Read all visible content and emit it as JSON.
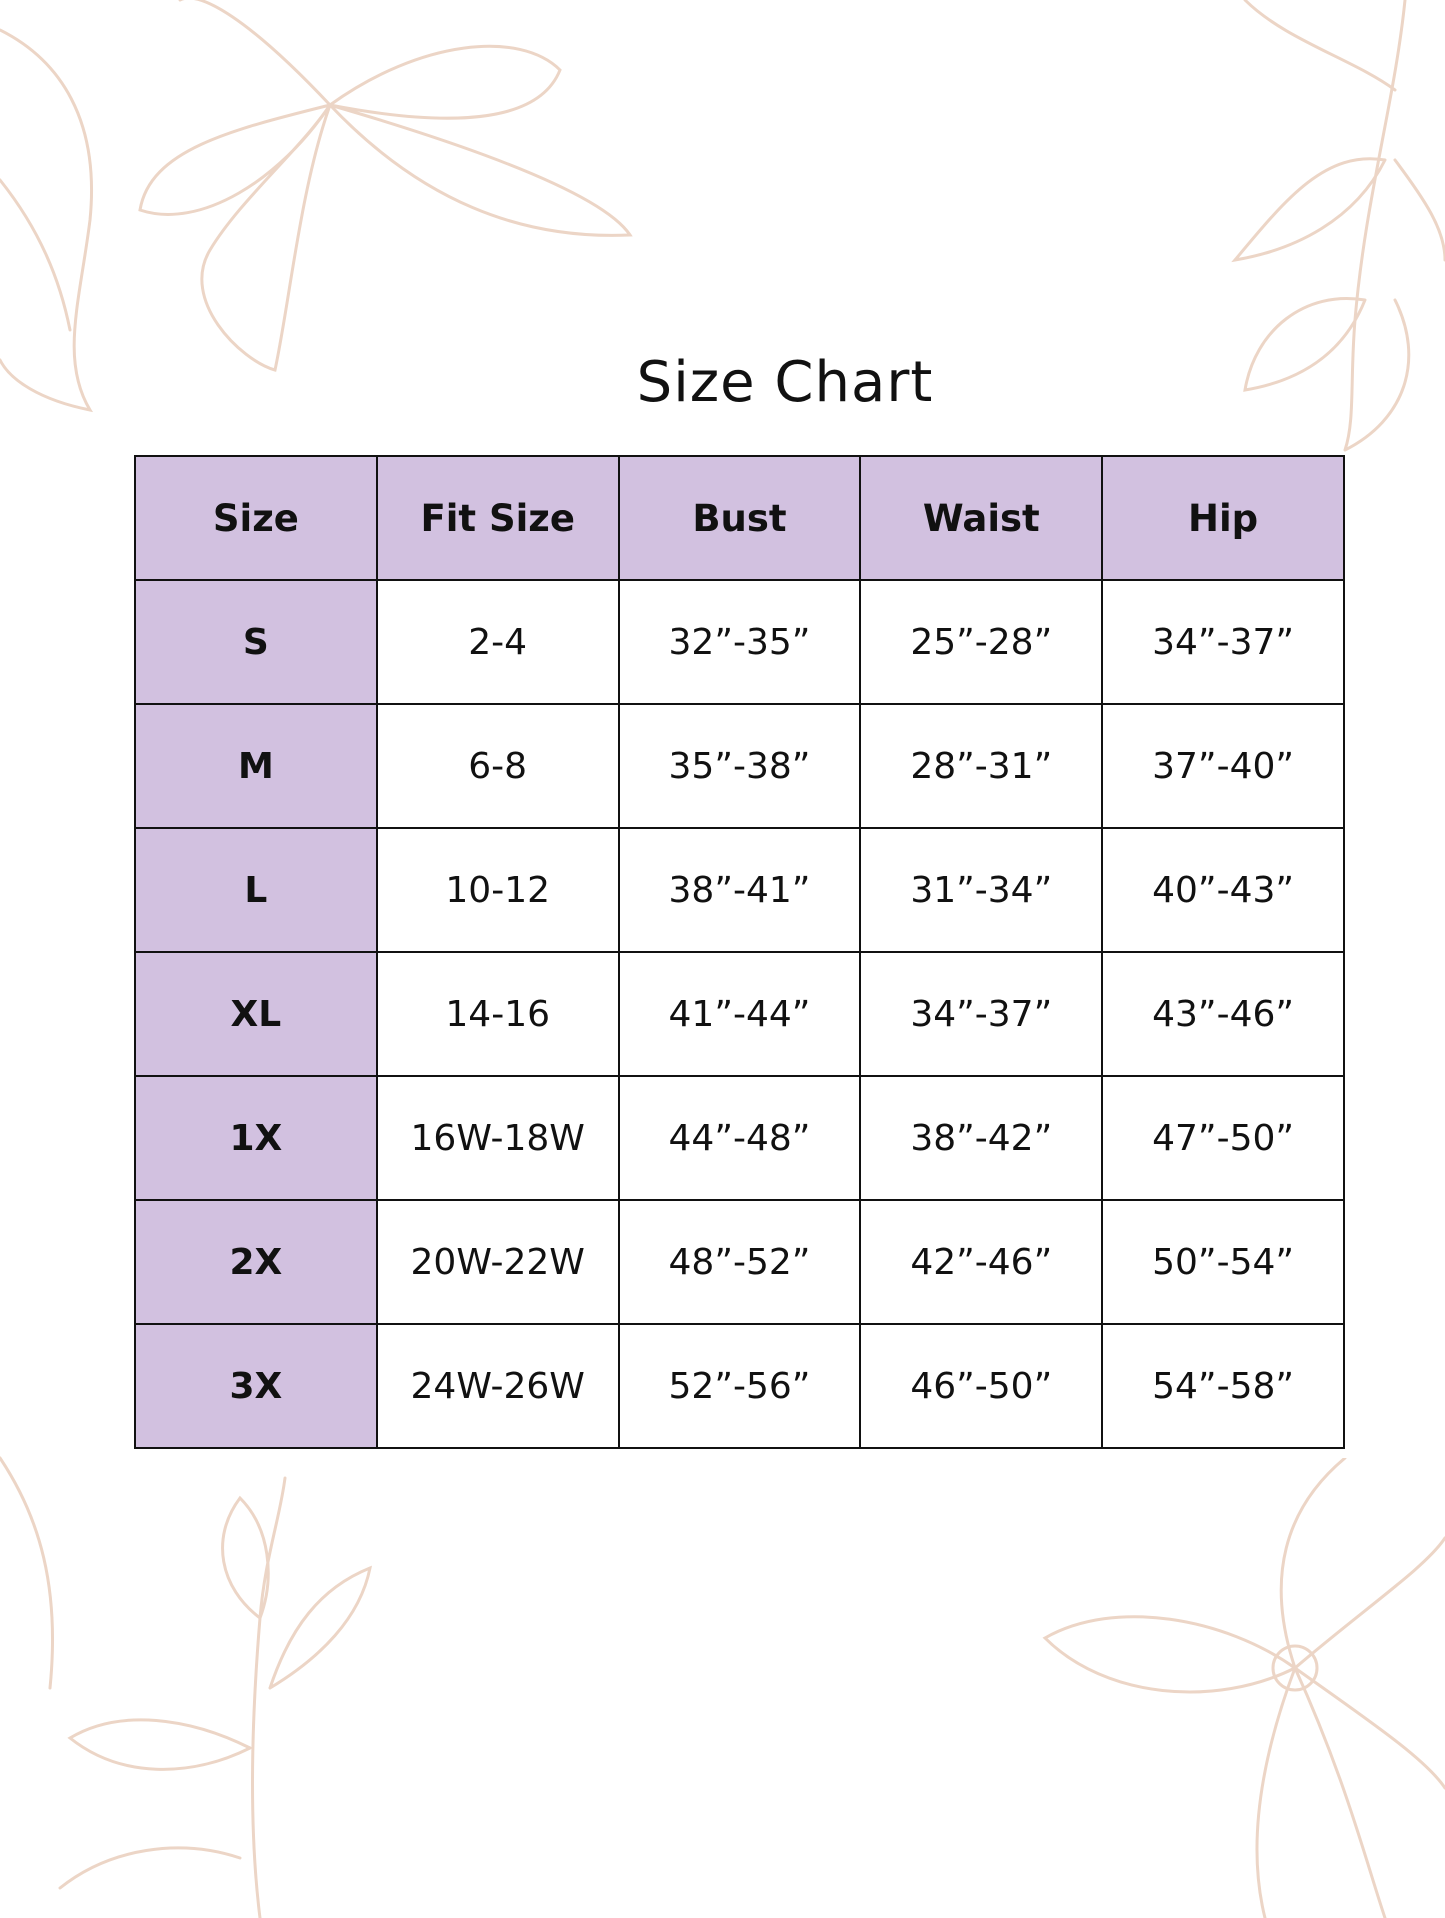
{
  "title": "Size Chart",
  "colors": {
    "header_bg": "#d2c1e0",
    "decoration": "#ecd5c6"
  },
  "table": {
    "headers": [
      "Size",
      "Fit Size",
      "Bust",
      "Waist",
      "Hip"
    ],
    "rows": [
      [
        "S",
        "2-4",
        "32”-35”",
        "25”-28”",
        "34”-37”"
      ],
      [
        "M",
        "6-8",
        "35”-38”",
        "28”-31”",
        "37”-40”"
      ],
      [
        "L",
        "10-12",
        "38”-41”",
        "31”-34”",
        "40”-43”"
      ],
      [
        "XL",
        "14-16",
        "41”-44”",
        "34”-37”",
        "43”-46”"
      ],
      [
        "1X",
        "16W-18W",
        "44”-48”",
        "38”-42”",
        "47”-50”"
      ],
      [
        "2X",
        "20W-22W",
        "48”-52”",
        "42”-46”",
        "50”-54”"
      ],
      [
        "3X",
        "24W-26W",
        "52”-56”",
        "46”-50”",
        "54”-58”"
      ]
    ]
  }
}
